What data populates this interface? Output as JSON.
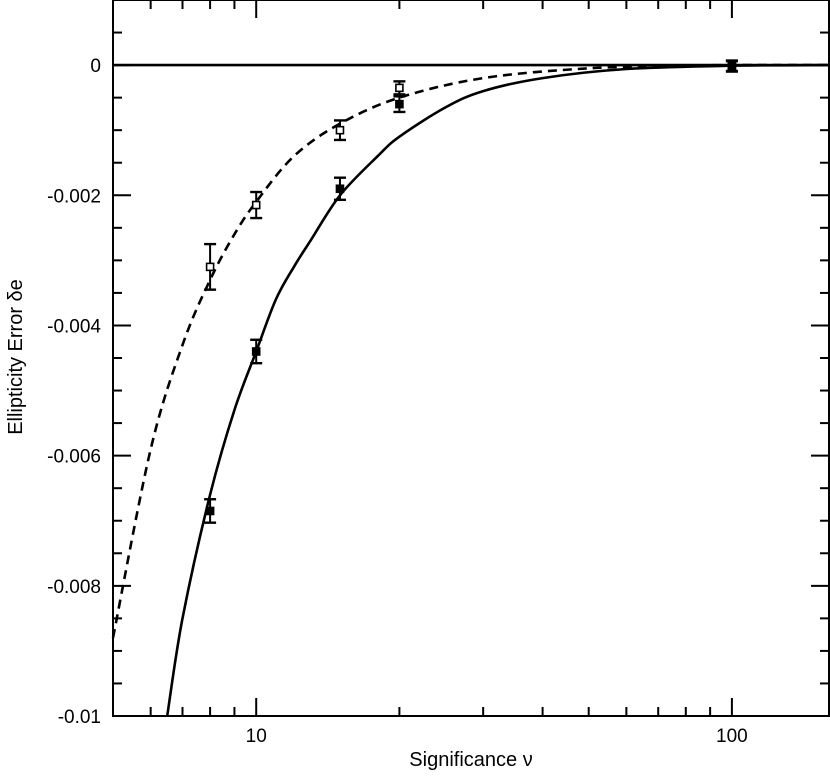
{
  "chart_data": {
    "type": "scatter",
    "title": "",
    "xlabel": "Significance ν",
    "ylabel": "Ellipticity Error δe",
    "x_scale": "log",
    "xlim": [
      5,
      160
    ],
    "ylim": [
      -0.01,
      0.001
    ],
    "x_tick_labels": [
      {
        "value": 10,
        "label": "10"
      },
      {
        "value": 100,
        "label": "100"
      }
    ],
    "y_tick_labels": [
      {
        "value": 0,
        "label": "0"
      },
      {
        "value": -0.002,
        "label": "-0.002"
      },
      {
        "value": -0.004,
        "label": "-0.004"
      },
      {
        "value": -0.006,
        "label": "-0.006"
      },
      {
        "value": -0.008,
        "label": "-0.008"
      },
      {
        "value": -0.01,
        "label": "-0.01"
      }
    ],
    "grid": false,
    "legend": "none",
    "reference_line": {
      "y": 0,
      "style": "solid"
    },
    "series": [
      {
        "marker": "open-square",
        "fit_line": "dashed",
        "points": [
          {
            "x": 8,
            "y": -0.0031,
            "err": 0.00035
          },
          {
            "x": 10,
            "y": -0.00215,
            "err": 0.0002
          },
          {
            "x": 15,
            "y": -0.001,
            "err": 0.00015
          },
          {
            "x": 20,
            "y": -0.00035,
            "err": 0.0001
          },
          {
            "x": 100,
            "y": -1e-05,
            "err": 8e-05
          }
        ]
      },
      {
        "marker": "filled-square",
        "fit_line": "solid",
        "points": [
          {
            "x": 8,
            "y": -0.00685,
            "err": 0.00018
          },
          {
            "x": 10,
            "y": -0.0044,
            "err": 0.00018
          },
          {
            "x": 15,
            "y": -0.0019,
            "err": 0.00017
          },
          {
            "x": 20,
            "y": -0.0006,
            "err": 0.00012
          },
          {
            "x": 100,
            "y": -2e-05,
            "err": 8e-05
          }
        ]
      }
    ],
    "curves": [
      {
        "style": "dashed",
        "x": [
          5,
          6,
          7,
          8,
          9,
          10,
          12,
          15,
          20,
          30,
          50,
          80,
          100,
          160
        ],
        "y": [
          -0.0088,
          -0.0059,
          -0.0043,
          -0.0033,
          -0.0026,
          -0.0021,
          -0.0014,
          -0.0009,
          -0.0005,
          -0.0002,
          -5e-05,
          -1e-05,
          0,
          0
        ]
      },
      {
        "style": "solid",
        "x": [
          6.5,
          7,
          8,
          9,
          10,
          11,
          12,
          13,
          15,
          18,
          20,
          25,
          30,
          40,
          60,
          100,
          160
        ],
        "y": [
          -0.01,
          -0.0085,
          -0.0066,
          -0.0053,
          -0.0044,
          -0.0036,
          -0.0031,
          -0.0027,
          -0.002,
          -0.0014,
          -0.0011,
          -0.00065,
          -0.0004,
          -0.0002,
          -6e-05,
          -1e-05,
          0
        ]
      }
    ]
  }
}
